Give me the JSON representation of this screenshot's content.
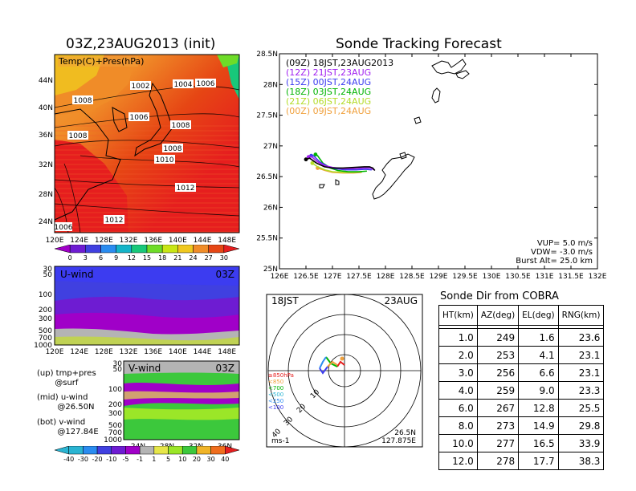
{
  "left_title": "03Z,23AUG2013 (init)",
  "right_title": "Sonde Tracking Forecast",
  "map_panel": {
    "label": "Temp(C)+Pres(hPa)",
    "lat_labels": [
      "44N",
      "40N",
      "36N",
      "32N",
      "28N",
      "24N"
    ],
    "lon_labels": [
      "120E",
      "124E",
      "128E",
      "132E",
      "136E",
      "140E",
      "144E",
      "148E"
    ],
    "isobars": [
      "1002",
      "1004",
      "1006",
      "1008",
      "1006",
      "1008",
      "1008",
      "1010",
      "1012",
      "1012",
      "1006"
    ],
    "colorbar_labels": [
      "0",
      "3",
      "6",
      "9",
      "12",
      "15",
      "18",
      "21",
      "24",
      "27",
      "30"
    ],
    "colorbar_colors": [
      "#a000c8",
      "#6e1cd2",
      "#4040e0",
      "#2a8cf0",
      "#14b4c8",
      "#18c87a",
      "#6edc28",
      "#c8e614",
      "#f0c81e",
      "#f08c28",
      "#e64614",
      "#e61e1e"
    ]
  },
  "u_panel": {
    "label": "U-wind",
    "time": "03Z",
    "p_labels": [
      "30",
      "50",
      "100",
      "200",
      "300",
      "500",
      "700",
      "1000"
    ],
    "lon_labels": [
      "120E",
      "124E",
      "128E",
      "132E",
      "136E",
      "140E",
      "144E",
      "148E"
    ]
  },
  "v_panel": {
    "label": "V-wind",
    "time": "03Z",
    "p_labels": [
      "30",
      "50",
      "100",
      "200",
      "300",
      "500",
      "700",
      "1000"
    ],
    "lat_labels": [
      "24N",
      "28N",
      "32N",
      "36N"
    ]
  },
  "notes": {
    "up": "(up) tmp+pres\n       @surf",
    "mid": "(mid) u-wind\n        @26.50N",
    "bot": "(bot) v-wind\n        @127.84E"
  },
  "wind_colorbar": {
    "labels": [
      "-40",
      "-30",
      "-20",
      "-10",
      "-5",
      "-1",
      "1",
      "5",
      "10",
      "20",
      "30",
      "40"
    ],
    "colors": [
      "#2ab4d2",
      "#2a8cf0",
      "#4040e0",
      "#6e1cd2",
      "#a000c8",
      "#b4b4b4",
      "#e6e64a",
      "#9be628",
      "#3cc83c",
      "#f0b428",
      "#f06e1e",
      "#e61e1e"
    ]
  },
  "chart_data": {
    "type": "line",
    "title": "Sonde Tracking Forecast",
    "xlim": [
      126,
      132
    ],
    "ylim": [
      25,
      28.5
    ],
    "x_ticks": [
      "126E",
      "126.5E",
      "127E",
      "127.5E",
      "128E",
      "128.5E",
      "129E",
      "129.5E",
      "130E",
      "130.5E",
      "131E",
      "131.5E",
      "132E"
    ],
    "y_ticks": [
      "25N",
      "25.5N",
      "26N",
      "26.5N",
      "27N",
      "27.5N",
      "28N",
      "28.5N"
    ],
    "series": [
      {
        "name": "(09Z) 18JST,23AUG2013",
        "color": "#000000",
        "x": [
          126.5,
          126.57,
          126.7,
          126.85,
          127.0,
          127.2,
          127.4,
          127.6,
          127.7,
          127.76,
          127.8
        ],
        "y": [
          26.78,
          26.8,
          26.72,
          26.66,
          26.64,
          26.64,
          26.65,
          26.66,
          26.66,
          26.64,
          26.6
        ]
      },
      {
        "name": "(12Z) 21JST,23AUG",
        "color": "#a020f0",
        "x": [
          126.55,
          126.6,
          126.72,
          126.85,
          127.0,
          127.2,
          127.4,
          127.6,
          127.72,
          127.78
        ],
        "y": [
          26.82,
          26.83,
          26.74,
          26.68,
          26.65,
          26.63,
          26.63,
          26.64,
          26.64,
          26.61
        ]
      },
      {
        "name": "(15Z) 00JST,24AUG",
        "color": "#3c3cf0",
        "x": [
          126.6,
          126.64,
          126.76,
          126.9,
          127.05,
          127.25,
          127.45,
          127.62,
          127.74
        ],
        "y": [
          26.84,
          26.84,
          26.74,
          26.67,
          26.63,
          26.61,
          26.61,
          26.62,
          26.61
        ]
      },
      {
        "name": "(18Z) 03JST,24AUG",
        "color": "#00b400",
        "x": [
          126.68,
          126.72,
          126.82,
          126.96,
          127.1,
          127.3,
          127.5,
          127.65
        ],
        "y": [
          26.86,
          26.84,
          26.72,
          26.64,
          26.6,
          26.58,
          26.58,
          26.59
        ]
      },
      {
        "name": "(21Z) 06JST,24AUG",
        "color": "#b4dc28",
        "x": [
          126.62,
          126.72,
          126.86,
          127.0,
          127.2,
          127.4,
          127.56
        ],
        "y": [
          26.72,
          26.66,
          26.61,
          26.58,
          26.57,
          26.57,
          26.58
        ]
      },
      {
        "name": "(00Z) 09JST,24AUG",
        "color": "#f0a03c",
        "x": [
          126.72,
          126.86,
          127.0,
          127.2,
          127.4,
          127.55
        ],
        "y": [
          26.64,
          26.6,
          26.57,
          26.56,
          26.56,
          26.57
        ]
      }
    ],
    "legend_placement": "top-left",
    "annotations": [
      "VUP=  5.0  m/s",
      "VDW=  -3.0  m/s",
      "Burst Alt=  25.0  km"
    ]
  },
  "polar": {
    "time": "18JST",
    "date": "23AUG",
    "ring_labels": [
      "10",
      "20",
      "30",
      "40"
    ],
    "level_legend": [
      "≥850hPa",
      "<850",
      "<700",
      "<500",
      "<250",
      "<100"
    ],
    "level_colors": [
      "#e61e1e",
      "#f0a03c",
      "#00b400",
      "#2ab4d2",
      "#2a8cf0",
      "#3c3cf0"
    ],
    "pos_label": "26.5N",
    "pos_label2": "127.875E",
    "units": "ms-1"
  },
  "sonde_dir": {
    "title": "Sonde Dir from COBRA",
    "headers": [
      "HT(km)",
      "AZ(deg)",
      "EL(deg)",
      "RNG(km)"
    ],
    "rows": [
      [
        "1.0",
        "249",
        "1.6",
        "23.6"
      ],
      [
        "2.0",
        "253",
        "4.1",
        "23.1"
      ],
      [
        "3.0",
        "256",
        "6.6",
        "23.1"
      ],
      [
        "4.0",
        "259",
        "9.0",
        "23.3"
      ],
      [
        "6.0",
        "267",
        "12.8",
        "25.5"
      ],
      [
        "8.0",
        "273",
        "14.9",
        "29.8"
      ],
      [
        "10.0",
        "277",
        "16.5",
        "33.9"
      ],
      [
        "12.0",
        "278",
        "17.7",
        "38.3"
      ]
    ]
  }
}
